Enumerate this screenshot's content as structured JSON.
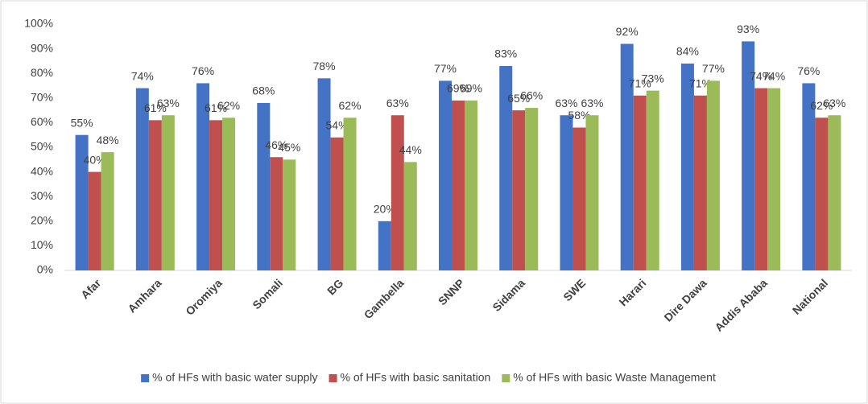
{
  "chart_data": {
    "type": "bar",
    "categories": [
      "Afar",
      "Amhara",
      "Oromiya",
      "Somali",
      "BG",
      "Gambella",
      "SNNP",
      "Sidama",
      "SWE",
      "Harari",
      "Dire Dawa",
      "Addis Ababa",
      "National"
    ],
    "series": [
      {
        "name": "% of HFs with basic water supply",
        "color": "#4472c4",
        "values": [
          55,
          74,
          76,
          68,
          78,
          20,
          77,
          83,
          63,
          92,
          84,
          93,
          76
        ],
        "value_labels": [
          "55%",
          "74%",
          "76%",
          "68%",
          "78%",
          "20%",
          "77%",
          "83%",
          "63%",
          "92%",
          "84%",
          "93%",
          "76%"
        ]
      },
      {
        "name": "% of HFs with basic sanitation",
        "color": "#c0504d",
        "values": [
          40,
          61,
          61,
          46,
          54,
          63,
          69,
          65,
          58,
          71,
          71,
          74,
          62
        ],
        "value_labels": [
          "40%",
          "61%",
          "61%",
          "46%",
          "54%",
          "63%",
          "69%",
          "65%",
          "58%",
          "71%",
          "71%",
          "74%",
          "62%"
        ]
      },
      {
        "name": "% of HFs with basic Waste Management",
        "color": "#9bbb59",
        "values": [
          48,
          63,
          62,
          45,
          62,
          44,
          69,
          66,
          63,
          73,
          77,
          74,
          63
        ],
        "value_labels": [
          "48%",
          "63%",
          "62%",
          "45%",
          "62%",
          "44%",
          "69%",
          "66%",
          "63%",
          "73%",
          "77%",
          "74%",
          "63%"
        ]
      }
    ],
    "ylim": [
      0,
      100
    ],
    "yticks": [
      {
        "value": 0,
        "label": "0%"
      },
      {
        "value": 10,
        "label": "10%"
      },
      {
        "value": 20,
        "label": "20%"
      },
      {
        "value": 30,
        "label": "30%"
      },
      {
        "value": 40,
        "label": "40%"
      },
      {
        "value": 50,
        "label": "50%"
      },
      {
        "value": 60,
        "label": "60%"
      },
      {
        "value": 70,
        "label": "70%"
      },
      {
        "value": 80,
        "label": "80%"
      },
      {
        "value": 90,
        "label": "90%"
      },
      {
        "value": 100,
        "label": "100%"
      }
    ],
    "grid": false,
    "legend": "bottom"
  }
}
